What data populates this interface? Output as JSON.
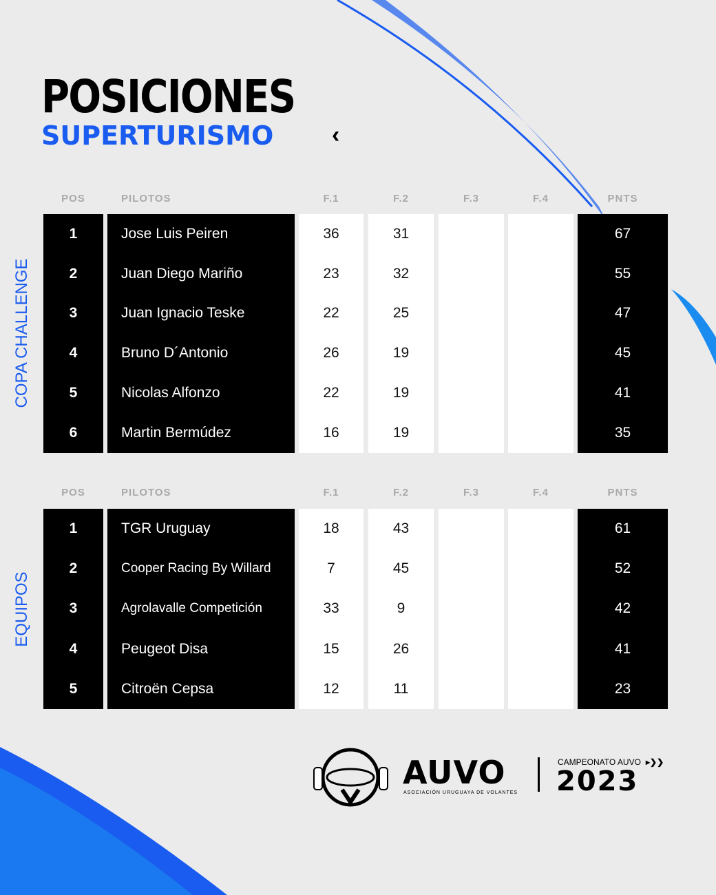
{
  "title": "POSICIONES",
  "subtitle": "SUPERTURISMO",
  "chevron": "‹",
  "headers": {
    "pos": "POS",
    "pilot": "PILOTOS",
    "f1": "F.1",
    "f2": "F.2",
    "f3": "F.3",
    "f4": "F.4",
    "pts": "PNTS"
  },
  "colors": {
    "accent": "#1a5cf0",
    "background": "#ebebeb"
  },
  "tables": [
    {
      "label": "COPA CHALLENGE",
      "rows": [
        {
          "pos": "1",
          "name": "Jose Luis Peiren",
          "f1": "36",
          "f2": "31",
          "f3": "",
          "f4": "",
          "pts": "67"
        },
        {
          "pos": "2",
          "name": "Juan Diego Mariño",
          "f1": "23",
          "f2": "32",
          "f3": "",
          "f4": "",
          "pts": "55"
        },
        {
          "pos": "3",
          "name": "Juan Ignacio Teske",
          "f1": "22",
          "f2": "25",
          "f3": "",
          "f4": "",
          "pts": "47"
        },
        {
          "pos": "4",
          "name": "Bruno D´Antonio",
          "f1": "26",
          "f2": "19",
          "f3": "",
          "f4": "",
          "pts": "45"
        },
        {
          "pos": "5",
          "name": "Nicolas Alfonzo",
          "f1": "22",
          "f2": "19",
          "f3": "",
          "f4": "",
          "pts": "41"
        },
        {
          "pos": "6",
          "name": "Martin Bermúdez",
          "f1": "16",
          "f2": "19",
          "f3": "",
          "f4": "",
          "pts": "35"
        }
      ]
    },
    {
      "label": "EQUIPOS",
      "rows": [
        {
          "pos": "1",
          "name": "TGR Uruguay",
          "f1": "18",
          "f2": "43",
          "f3": "",
          "f4": "",
          "pts": "61"
        },
        {
          "pos": "2",
          "name": "Cooper Racing By Willard",
          "f1": "7",
          "f2": "45",
          "f3": "",
          "f4": "",
          "pts": "52"
        },
        {
          "pos": "3",
          "name": "Agrolavalle Competición",
          "f1": "33",
          "f2": "9",
          "f3": "",
          "f4": "",
          "pts": "42"
        },
        {
          "pos": "4",
          "name": "Peugeot Disa",
          "f1": "15",
          "f2": "26",
          "f3": "",
          "f4": "",
          "pts": "41"
        },
        {
          "pos": "5",
          "name": "Citroën Cepsa",
          "f1": "12",
          "f2": "11",
          "f3": "",
          "f4": "",
          "pts": "23"
        }
      ]
    }
  ],
  "footer": {
    "brand": "AUVO",
    "brand_sub": "ASOCIACIÓN URUGUAYA DE VOLANTES",
    "campaign": "CAMPEONATO AUVO",
    "year": "2023"
  }
}
